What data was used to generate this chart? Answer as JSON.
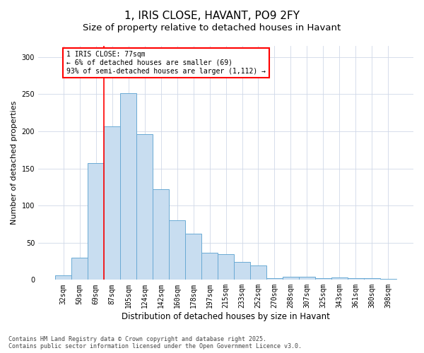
{
  "title": "1, IRIS CLOSE, HAVANT, PO9 2FY",
  "subtitle": "Size of property relative to detached houses in Havant",
  "xlabel": "Distribution of detached houses by size in Havant",
  "ylabel": "Number of detached properties",
  "categories": [
    "32sqm",
    "50sqm",
    "69sqm",
    "87sqm",
    "105sqm",
    "124sqm",
    "142sqm",
    "160sqm",
    "178sqm",
    "197sqm",
    "215sqm",
    "233sqm",
    "252sqm",
    "270sqm",
    "288sqm",
    "307sqm",
    "325sqm",
    "343sqm",
    "361sqm",
    "380sqm",
    "398sqm"
  ],
  "values": [
    6,
    30,
    157,
    207,
    251,
    196,
    122,
    80,
    62,
    36,
    35,
    24,
    19,
    2,
    4,
    4,
    2,
    3,
    2,
    2,
    1
  ],
  "bar_color": "#c8ddf0",
  "bar_edge_color": "#6aaad4",
  "vline_x_index": 2,
  "vline_color": "red",
  "annotation_line1": "1 IRIS CLOSE: 77sqm",
  "annotation_line2": "← 6% of detached houses are smaller (69)",
  "annotation_line3": "93% of semi-detached houses are larger (1,112) →",
  "annotation_box_color": "white",
  "annotation_box_edge_color": "red",
  "ylim": [
    0,
    315
  ],
  "yticks": [
    0,
    50,
    100,
    150,
    200,
    250,
    300
  ],
  "background_color": "#ffffff",
  "plot_bg_color": "#ffffff",
  "grid_color": "#d0d8e8",
  "footer_text": "Contains HM Land Registry data © Crown copyright and database right 2025.\nContains public sector information licensed under the Open Government Licence v3.0.",
  "title_fontsize": 11,
  "subtitle_fontsize": 9.5,
  "xlabel_fontsize": 8.5,
  "ylabel_fontsize": 8,
  "tick_fontsize": 7,
  "annotation_fontsize": 7,
  "footer_fontsize": 6
}
